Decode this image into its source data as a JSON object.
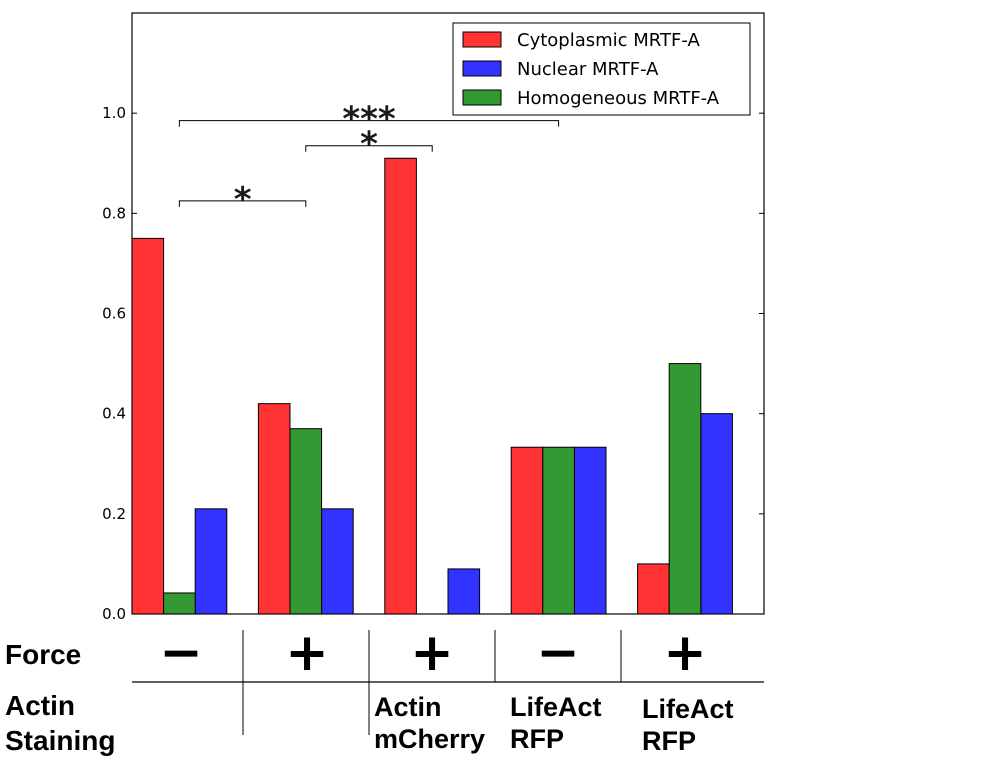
{
  "chart_data": {
    "type": "bar",
    "title": "",
    "xlabel": "",
    "ylabel": "",
    "ylim": [
      0,
      1.2
    ],
    "yticks": [
      "0.0",
      "0.2",
      "0.4",
      "0.6",
      "0.8",
      "1.0"
    ],
    "groups": 5,
    "series": [
      {
        "name": "Cytoplasmic MRTF-A",
        "color": "#ff3333",
        "slot": 0,
        "values": [
          0.75,
          0.42,
          0.91,
          0.333,
          0.1
        ]
      },
      {
        "name": "Nuclear MRTF-A",
        "color": "#3333ff",
        "slot": 2,
        "values": [
          0.21,
          0.21,
          0.09,
          0.333,
          0.4
        ]
      },
      {
        "name": "Homogeneous MRTF-A",
        "color": "#339933",
        "slot": 1,
        "values": [
          0.042,
          0.37,
          0.0,
          0.333,
          0.5
        ]
      }
    ],
    "legend": {
      "placement": "top-right"
    },
    "significance": [
      {
        "label": "*",
        "from_group": 0,
        "to_group": 1,
        "level": 0.825
      },
      {
        "label": "*",
        "from_group": 1,
        "to_group": 2,
        "level": 0.935
      },
      {
        "label": "***",
        "from_group": 0,
        "to_group": 3,
        "level": 0.985
      }
    ]
  },
  "table": {
    "force_label": "Force",
    "staining_label_line1": "Actin",
    "staining_label_line2": "Staining",
    "force_signs": [
      "−",
      "+",
      "+",
      "−",
      "+"
    ],
    "staining": [
      [
        "",
        ""
      ],
      [
        "",
        ""
      ],
      [
        "Actin",
        "mCherry"
      ],
      [
        "LifeAct",
        "RFP"
      ],
      [
        "LifeAct",
        "RFP"
      ]
    ]
  }
}
